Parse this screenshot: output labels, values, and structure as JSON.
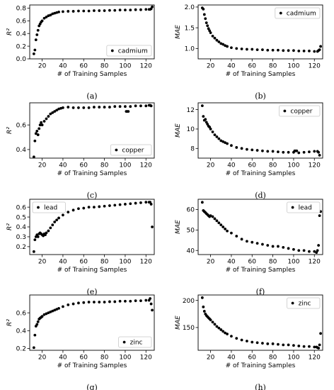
{
  "chart_data": [
    {
      "type": "scatter",
      "caption": "(a)",
      "xlabel": "# of Training Samples",
      "ylabel": "R²",
      "legend": "cadmium",
      "legend_position": "lower-right",
      "xlim": [
        8,
        128
      ],
      "ylim": [
        0.0,
        0.85
      ],
      "xticks": [
        20,
        40,
        60,
        80,
        100,
        120
      ],
      "yticks": [
        0.0,
        0.2,
        0.4,
        0.6,
        0.8
      ],
      "ytick_labels": [
        "0.0",
        "0.2",
        "0.4",
        "0.6",
        "0.8"
      ],
      "series": {
        "x": [
          12,
          13,
          14,
          15,
          16,
          17,
          18,
          19,
          20,
          22,
          24,
          26,
          28,
          30,
          32,
          34,
          36,
          40,
          45,
          50,
          55,
          60,
          65,
          70,
          75,
          80,
          85,
          90,
          95,
          100,
          105,
          110,
          115,
          120,
          123,
          124,
          125,
          126
        ],
        "y": [
          0.08,
          0.14,
          0.3,
          0.38,
          0.45,
          0.52,
          0.55,
          0.58,
          0.6,
          0.64,
          0.66,
          0.68,
          0.69,
          0.71,
          0.72,
          0.73,
          0.74,
          0.745,
          0.75,
          0.75,
          0.755,
          0.755,
          0.755,
          0.76,
          0.76,
          0.76,
          0.765,
          0.765,
          0.77,
          0.77,
          0.77,
          0.775,
          0.775,
          0.78,
          0.78,
          0.78,
          0.79,
          0.82
        ]
      }
    },
    {
      "type": "scatter",
      "caption": "(b)",
      "xlabel": "# of Training Samples",
      "ylabel": "MAE",
      "legend": "cadmium",
      "legend_position": "upper-right",
      "xlim": [
        8,
        128
      ],
      "ylim": [
        0.75,
        2.05
      ],
      "xticks": [
        20,
        40,
        60,
        80,
        100,
        120
      ],
      "yticks": [
        1.0,
        1.5,
        2.0
      ],
      "ytick_labels": [
        "1.0",
        "1.5",
        "2.0"
      ],
      "series": {
        "x": [
          12,
          13,
          14,
          15,
          16,
          17,
          18,
          19,
          20,
          22,
          24,
          26,
          28,
          30,
          32,
          34,
          36,
          40,
          45,
          50,
          55,
          60,
          65,
          70,
          75,
          80,
          85,
          90,
          95,
          100,
          105,
          110,
          115,
          120,
          123,
          124,
          125,
          126
        ],
        "y": [
          1.98,
          1.95,
          1.82,
          1.72,
          1.62,
          1.55,
          1.48,
          1.43,
          1.38,
          1.3,
          1.25,
          1.2,
          1.16,
          1.12,
          1.1,
          1.07,
          1.05,
          1.02,
          1.0,
          0.99,
          0.98,
          0.98,
          0.97,
          0.97,
          0.96,
          0.96,
          0.96,
          0.95,
          0.95,
          0.95,
          0.94,
          0.94,
          0.94,
          0.93,
          0.93,
          0.95,
          0.97,
          1.05
        ]
      }
    },
    {
      "type": "scatter",
      "caption": "(c)",
      "xlabel": "# of Training Samples",
      "ylabel": "R²",
      "legend": "copper",
      "legend_position": "lower-right",
      "xlim": [
        8,
        128
      ],
      "ylim": [
        0.33,
        0.78
      ],
      "xticks": [
        20,
        40,
        60,
        80,
        100,
        120
      ],
      "yticks": [
        0.4,
        0.6
      ],
      "ytick_labels": [
        "0.4",
        "0.6"
      ],
      "series": {
        "x": [
          12,
          13,
          14,
          15,
          16,
          17,
          18,
          19,
          20,
          22,
          24,
          26,
          28,
          30,
          32,
          34,
          36,
          38,
          40,
          45,
          50,
          55,
          60,
          65,
          70,
          75,
          80,
          85,
          90,
          95,
          100,
          101,
          102,
          103,
          105,
          110,
          115,
          120,
          123,
          124,
          125
        ],
        "y": [
          0.34,
          0.47,
          0.53,
          0.55,
          0.52,
          0.57,
          0.6,
          0.62,
          0.6,
          0.63,
          0.65,
          0.67,
          0.69,
          0.7,
          0.71,
          0.72,
          0.73,
          0.735,
          0.74,
          0.745,
          0.74,
          0.74,
          0.74,
          0.74,
          0.745,
          0.745,
          0.745,
          0.745,
          0.75,
          0.75,
          0.75,
          0.71,
          0.71,
          0.71,
          0.75,
          0.755,
          0.755,
          0.755,
          0.76,
          0.76,
          0.755
        ]
      }
    },
    {
      "type": "scatter",
      "caption": "(d)",
      "xlabel": "# of Training Samples",
      "ylabel": "MAE",
      "legend": "copper",
      "legend_position": "upper-right",
      "xlim": [
        8,
        128
      ],
      "ylim": [
        7.0,
        12.7
      ],
      "xticks": [
        20,
        40,
        60,
        80,
        100,
        120
      ],
      "yticks": [
        8,
        10,
        12
      ],
      "ytick_labels": [
        "8",
        "10",
        "12"
      ],
      "series": {
        "x": [
          12,
          13,
          14,
          15,
          16,
          17,
          18,
          19,
          20,
          22,
          24,
          26,
          28,
          30,
          32,
          34,
          36,
          40,
          45,
          50,
          55,
          60,
          65,
          70,
          75,
          80,
          85,
          90,
          95,
          100,
          101,
          102,
          103,
          105,
          110,
          115,
          120,
          123,
          124,
          125
        ],
        "y": [
          12.4,
          11.3,
          10.9,
          11.0,
          10.7,
          10.5,
          10.3,
          10.2,
          10.0,
          9.7,
          9.4,
          9.2,
          9.0,
          8.8,
          8.7,
          8.6,
          8.5,
          8.3,
          8.1,
          8.0,
          7.9,
          7.85,
          7.8,
          7.75,
          7.7,
          7.7,
          7.65,
          7.6,
          7.6,
          7.6,
          7.75,
          7.75,
          7.75,
          7.55,
          7.6,
          7.65,
          7.7,
          7.7,
          7.6,
          7.3
        ]
      }
    },
    {
      "type": "scatter",
      "caption": "(e)",
      "xlabel": "# of Training Samples",
      "ylabel": "R²",
      "legend": "lead",
      "legend_position": "upper-left",
      "xlim": [
        8,
        128
      ],
      "ylim": [
        0.12,
        0.68
      ],
      "xticks": [
        20,
        40,
        60,
        80,
        100,
        120
      ],
      "yticks": [
        0.2,
        0.3,
        0.4,
        0.5,
        0.6
      ],
      "ytick_labels": [
        "0.2",
        "0.3",
        "0.4",
        "0.5",
        "0.6"
      ],
      "series": {
        "x": [
          12,
          13,
          14,
          15,
          16,
          17,
          18,
          19,
          20,
          21,
          22,
          23,
          24,
          26,
          28,
          30,
          32,
          34,
          36,
          40,
          45,
          50,
          55,
          60,
          65,
          70,
          75,
          80,
          85,
          90,
          95,
          100,
          105,
          110,
          115,
          120,
          123,
          124,
          125,
          126
        ],
        "y": [
          0.15,
          0.27,
          0.3,
          0.32,
          0.3,
          0.33,
          0.34,
          0.33,
          0.32,
          0.31,
          0.33,
          0.32,
          0.34,
          0.36,
          0.39,
          0.42,
          0.45,
          0.47,
          0.49,
          0.52,
          0.55,
          0.57,
          0.585,
          0.59,
          0.6,
          0.6,
          0.605,
          0.61,
          0.615,
          0.62,
          0.625,
          0.63,
          0.635,
          0.64,
          0.645,
          0.65,
          0.65,
          0.65,
          0.63,
          0.4
        ]
      }
    },
    {
      "type": "scatter",
      "caption": "(f)",
      "xlabel": "# of Training Samples",
      "ylabel": "MAE",
      "legend": "lead",
      "legend_position": "upper-right",
      "xlim": [
        8,
        128
      ],
      "ylim": [
        38,
        65
      ],
      "xticks": [
        20,
        40,
        60,
        80,
        100,
        120
      ],
      "yticks": [
        40,
        50,
        60
      ],
      "ytick_labels": [
        "40",
        "50",
        "60"
      ],
      "series": {
        "x": [
          12,
          13,
          14,
          15,
          16,
          17,
          18,
          19,
          20,
          22,
          24,
          26,
          28,
          30,
          32,
          34,
          36,
          40,
          45,
          50,
          55,
          60,
          65,
          70,
          75,
          80,
          85,
          90,
          95,
          100,
          105,
          110,
          115,
          120,
          122,
          123,
          124,
          125,
          126
        ],
        "y": [
          63.5,
          59.5,
          59.0,
          58.5,
          58.0,
          57.5,
          57.0,
          56.5,
          57.0,
          56.5,
          55.5,
          54.5,
          53.5,
          52.5,
          51.5,
          50.5,
          49.5,
          48.5,
          47.0,
          45.5,
          44.5,
          44.0,
          43.5,
          43.0,
          42.5,
          42.0,
          42.0,
          41.5,
          41.0,
          40.5,
          40.0,
          40.0,
          39.5,
          39.5,
          39.0,
          40.0,
          42.5,
          57.0,
          59.0
        ]
      }
    },
    {
      "type": "scatter",
      "caption": "(g)",
      "xlabel": "# of Training Samples",
      "ylabel": "R²",
      "legend": "zinc",
      "legend_position": "lower-right",
      "xlim": [
        8,
        128
      ],
      "ylim": [
        0.18,
        0.8
      ],
      "xticks": [
        20,
        40,
        60,
        80,
        100,
        120
      ],
      "yticks": [
        0.2,
        0.4,
        0.6
      ],
      "ytick_labels": [
        "0.2",
        "0.4",
        "0.6"
      ],
      "series": {
        "x": [
          12,
          13,
          14,
          15,
          16,
          17,
          18,
          19,
          20,
          22,
          24,
          26,
          28,
          30,
          32,
          34,
          36,
          40,
          45,
          50,
          55,
          60,
          65,
          70,
          75,
          80,
          85,
          90,
          95,
          100,
          105,
          110,
          115,
          120,
          123,
          124,
          125,
          126
        ],
        "y": [
          0.21,
          0.35,
          0.45,
          0.47,
          0.5,
          0.53,
          0.54,
          0.55,
          0.56,
          0.58,
          0.59,
          0.6,
          0.61,
          0.62,
          0.63,
          0.64,
          0.65,
          0.67,
          0.69,
          0.7,
          0.71,
          0.715,
          0.72,
          0.72,
          0.72,
          0.72,
          0.725,
          0.725,
          0.73,
          0.73,
          0.73,
          0.735,
          0.735,
          0.74,
          0.74,
          0.76,
          0.7,
          0.63
        ]
      }
    },
    {
      "type": "scatter",
      "caption": "(h)",
      "xlabel": "# of Training Samples",
      "ylabel": "MAE",
      "legend": "zinc",
      "legend_position": "upper-right",
      "xlim": [
        8,
        128
      ],
      "ylim": [
        108,
        210
      ],
      "xticks": [
        20,
        40,
        60,
        80,
        100,
        120
      ],
      "yticks": [
        150,
        200
      ],
      "ytick_labels": [
        "150",
        "200"
      ],
      "series": {
        "x": [
          12,
          13,
          14,
          15,
          16,
          17,
          18,
          19,
          20,
          22,
          24,
          26,
          28,
          30,
          32,
          34,
          36,
          40,
          45,
          50,
          55,
          60,
          65,
          70,
          75,
          80,
          85,
          90,
          95,
          100,
          105,
          110,
          115,
          120,
          122,
          123,
          124,
          125,
          126
        ],
        "y": [
          205,
          188,
          180,
          175,
          172,
          170,
          168,
          166,
          164,
          160,
          156,
          152,
          149,
          146,
          143,
          140,
          138,
          134,
          130,
          127,
          125,
          123,
          122,
          121,
          120,
          120,
          119,
          118,
          118,
          117,
          116,
          115,
          115,
          114,
          114,
          113,
          112,
          118,
          139
        ]
      }
    }
  ]
}
